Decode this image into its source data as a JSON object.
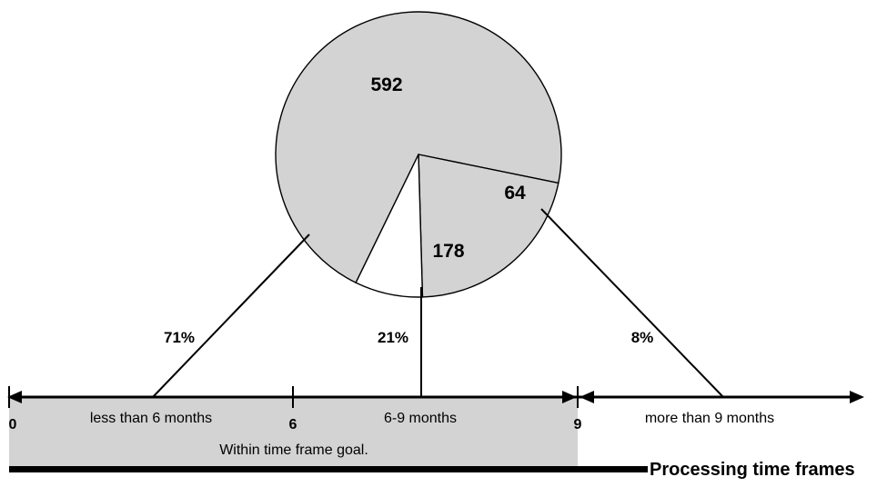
{
  "chart_data": {
    "type": "pie",
    "categories": [
      "less than 6 months",
      "6-9 months",
      "more than 9 months"
    ],
    "values": [
      592,
      178,
      64
    ],
    "percent_labels": [
      "71%",
      "21%",
      "8%"
    ],
    "slice_colors": [
      "#d3d3d3",
      "#d3d3d3",
      "#ffffff"
    ],
    "timeline": {
      "ticks": [
        "0",
        "6",
        "9"
      ],
      "segment_labels": [
        "less than 6 months",
        "6-9 months",
        "more than 9 months"
      ],
      "goal_label": "Within time frame goal.",
      "axis_title": "Processing time frames",
      "goal_color": "#d3d3d3"
    }
  }
}
